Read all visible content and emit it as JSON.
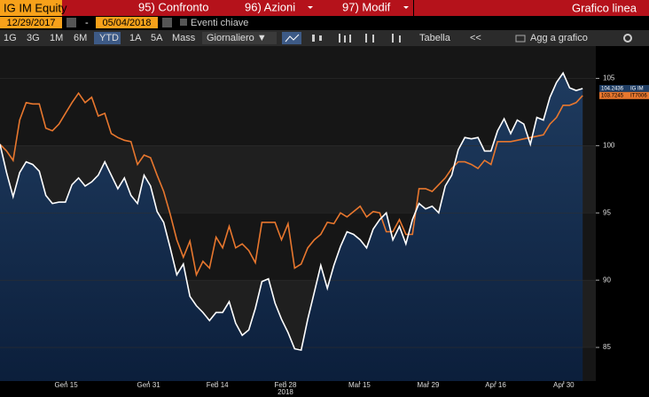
{
  "header": {
    "ticker": "IG IM Equity",
    "menu": [
      "95) Confronto",
      "96) Azioni",
      "97) Modif"
    ],
    "chart_kind": "Grafico linea"
  },
  "dates": {
    "start": "12/29/2017",
    "separator": "-",
    "end": "05/04/2018",
    "events": "Eventi chiave"
  },
  "toolbar": {
    "periods": [
      "1G",
      "3G",
      "1M",
      "6M",
      "YTD",
      "1A",
      "5A",
      "Mass"
    ],
    "frequency": "Giornaliero ▼",
    "table": "Tabella",
    "nav": "<<",
    "add": "Agg a grafico"
  },
  "chart_data": {
    "type": "line",
    "xlim": [
      0,
      91
    ],
    "xticks": [
      {
        "value": 10.1,
        "label": "Gen 15"
      },
      {
        "value": 22.7,
        "label": "Gen 31"
      },
      {
        "value": 33.2,
        "label": "Feb 14"
      },
      {
        "value": 43.6,
        "label": "Feb 28"
      },
      {
        "value": 54.9,
        "label": "Mar 15"
      },
      {
        "value": 65.4,
        "label": "Mar 29"
      },
      {
        "value": 75.7,
        "label": "Apr 16"
      },
      {
        "value": 86.1,
        "label": "Apr 30"
      }
    ],
    "x_label": "2018",
    "ylim": [
      82.5,
      107.4
    ],
    "yticks": [
      85,
      90,
      95,
      100,
      105
    ],
    "grid": true,
    "series": [
      {
        "name": "IG IM",
        "color": "#ffffff",
        "values": [
          100.1,
          98.0,
          96.2,
          98.0,
          98.8,
          98.6,
          98.1,
          96.3,
          95.7,
          95.8,
          95.8,
          97.1,
          97.6,
          97.0,
          97.3,
          97.8,
          98.8,
          97.8,
          96.8,
          97.6,
          96.3,
          95.7,
          97.8,
          97.0,
          95.1,
          94.3,
          92.4,
          90.4,
          91.2,
          88.8,
          88.1,
          87.6,
          87.0,
          87.6,
          87.6,
          88.4,
          86.8,
          85.9,
          86.3,
          87.9,
          89.9,
          90.1,
          88.3,
          87.1,
          86.1,
          84.9,
          84.8,
          87.1,
          89.1,
          91.1,
          89.4,
          91.1,
          92.5,
          93.6,
          93.4,
          93.0,
          92.4,
          93.8,
          94.5,
          95.0,
          93.0,
          94.0,
          92.7,
          94.5,
          95.7,
          95.3,
          95.5,
          95.0,
          97.0,
          97.8,
          99.7,
          100.6,
          100.5,
          100.6,
          99.6,
          99.6,
          101.1,
          102.0,
          100.9,
          101.9,
          101.6,
          100.1,
          102.1,
          101.9,
          103.6,
          104.7,
          105.4,
          104.3,
          104.1,
          104.2436
        ]
      },
      {
        "name": "IT7006",
        "color": "#e8772e",
        "values": [
          100.1,
          99.6,
          98.9,
          101.9,
          103.2,
          103.1,
          103.1,
          101.3,
          101.1,
          101.6,
          102.4,
          103.2,
          103.9,
          103.2,
          103.6,
          102.2,
          102.4,
          100.9,
          100.6,
          100.4,
          100.3,
          98.6,
          99.3,
          99.1,
          97.8,
          96.6,
          94.9,
          93.0,
          91.7,
          92.9,
          90.4,
          91.4,
          90.9,
          93.2,
          92.4,
          94.0,
          92.4,
          92.7,
          92.2,
          91.3,
          94.3,
          94.3,
          94.3,
          93.0,
          94.2,
          90.9,
          91.2,
          92.4,
          93.0,
          93.4,
          94.3,
          94.2,
          95.0,
          94.7,
          95.1,
          95.5,
          94.7,
          95.1,
          95.0,
          93.6,
          93.6,
          94.5,
          93.4,
          93.4,
          96.8,
          96.8,
          96.6,
          97.1,
          97.6,
          98.3,
          98.8,
          98.8,
          98.6,
          98.3,
          98.9,
          98.6,
          100.3,
          100.3,
          100.3,
          100.4,
          100.5,
          100.6,
          100.7,
          100.8,
          101.6,
          102.1,
          103.0,
          103.0,
          103.2,
          103.7245
        ]
      }
    ]
  }
}
